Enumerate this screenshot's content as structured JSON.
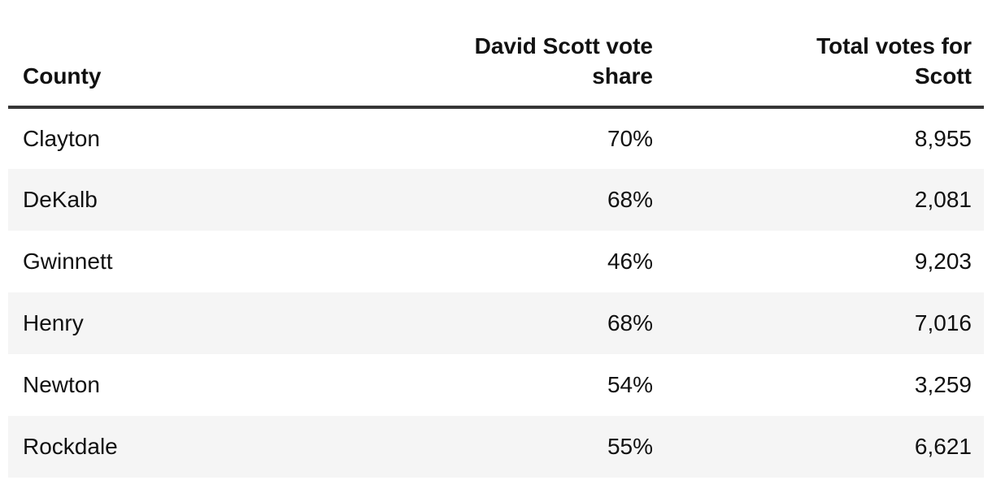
{
  "table": {
    "columns": [
      {
        "id": "county",
        "align": "left",
        "label_lines": [
          "County"
        ]
      },
      {
        "id": "share",
        "align": "right",
        "label_lines": [
          "David Scott vote",
          "share"
        ]
      },
      {
        "id": "votes",
        "align": "right",
        "label_lines": [
          "Total votes for",
          "Scott"
        ]
      }
    ],
    "rows": [
      {
        "county": "Clayton",
        "share": "70%",
        "votes": "8,955"
      },
      {
        "county": "DeKalb",
        "share": "68%",
        "votes": "2,081"
      },
      {
        "county": "Gwinnett",
        "share": "46%",
        "votes": "9,203"
      },
      {
        "county": "Henry",
        "share": "68%",
        "votes": "7,016"
      },
      {
        "county": "Newton",
        "share": "54%",
        "votes": "3,259"
      },
      {
        "county": "Rockdale",
        "share": "55%",
        "votes": "6,621"
      }
    ]
  },
  "colors": {
    "header_rule": "#363636",
    "zebra_row": "#f5f5f5",
    "text": "#111111",
    "background": "#ffffff"
  },
  "chart_data": {
    "type": "table",
    "title": "",
    "columns": [
      "County",
      "David Scott vote share",
      "Total votes for Scott"
    ],
    "categories": [
      "Clayton",
      "DeKalb",
      "Gwinnett",
      "Henry",
      "Newton",
      "Rockdale"
    ],
    "series": [
      {
        "name": "David Scott vote share",
        "values": [
          70,
          68,
          46,
          68,
          54,
          55
        ],
        "unit": "%"
      },
      {
        "name": "Total votes for Scott",
        "values": [
          8955,
          2081,
          9203,
          7016,
          3259,
          6621
        ]
      }
    ],
    "layout": {
      "zebra_striping": true,
      "header_rule": true,
      "grid": false,
      "legend_position": "none"
    }
  }
}
